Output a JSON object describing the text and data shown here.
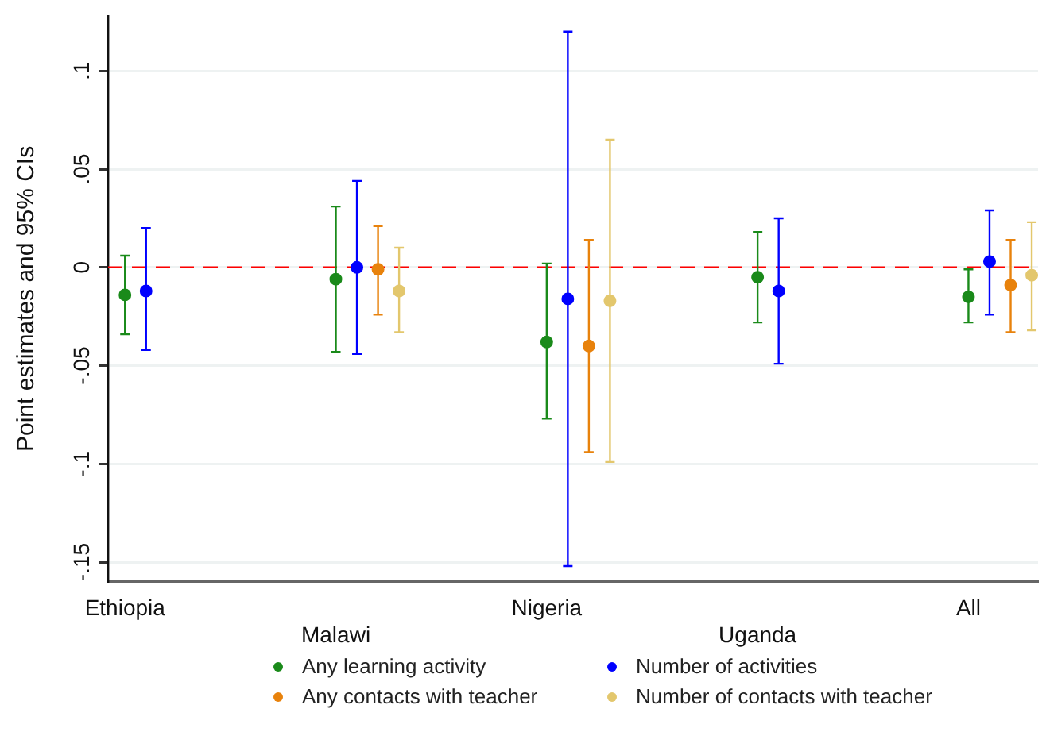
{
  "chart_data": {
    "type": "scatter",
    "ylabel": "Point estimates and 95% CIs",
    "categories": [
      "Ethiopia",
      "Malawi",
      "Nigeria",
      "Uganda",
      "All"
    ],
    "series": [
      {
        "name": "Any learning activity",
        "color": "#1a8a1a",
        "values": [
          -0.014,
          -0.006,
          -0.038,
          -0.005,
          -0.015
        ],
        "errors": [
          [
            -0.034,
            0.006
          ],
          [
            -0.043,
            0.031
          ],
          [
            -0.077,
            0.002
          ],
          [
            -0.028,
            0.018
          ],
          [
            -0.028,
            -0.001
          ]
        ]
      },
      {
        "name": "Number of activities",
        "color": "#0000ff",
        "values": [
          -0.012,
          0.0,
          -0.016,
          -0.012,
          0.003
        ],
        "errors": [
          [
            -0.042,
            0.02
          ],
          [
            -0.044,
            0.044
          ],
          [
            -0.152,
            0.12
          ],
          [
            -0.049,
            0.025
          ],
          [
            -0.024,
            0.029
          ]
        ]
      },
      {
        "name": "Any contacts with teacher",
        "color": "#e8820c",
        "values": [
          null,
          -0.001,
          -0.04,
          null,
          -0.009
        ],
        "errors": [
          null,
          [
            -0.024,
            0.021
          ],
          [
            -0.094,
            0.014
          ],
          null,
          [
            -0.033,
            0.014
          ]
        ]
      },
      {
        "name": "Number of contacts with teacher",
        "color": "#e3c76d",
        "values": [
          null,
          -0.012,
          -0.017,
          null,
          -0.004
        ],
        "errors": [
          null,
          [
            -0.033,
            0.01
          ],
          [
            -0.099,
            0.065
          ],
          null,
          [
            -0.032,
            0.023
          ]
        ]
      }
    ],
    "ylim": [
      -0.16,
      0.128
    ],
    "yticks": [
      {
        "value": -0.15,
        "label": "-.15"
      },
      {
        "value": -0.1,
        "label": "-.1"
      },
      {
        "value": -0.05,
        "label": "-.05"
      },
      {
        "value": 0,
        "label": "0"
      },
      {
        "value": 0.05,
        "label": ".05"
      },
      {
        "value": 0.1,
        "label": ".1"
      }
    ],
    "ref_lines": [
      {
        "axis": "y",
        "value": 0,
        "color": "#ff0000",
        "line_style": "dashed"
      }
    ],
    "grid": "y",
    "legend": "bottom",
    "marker": "circle"
  }
}
